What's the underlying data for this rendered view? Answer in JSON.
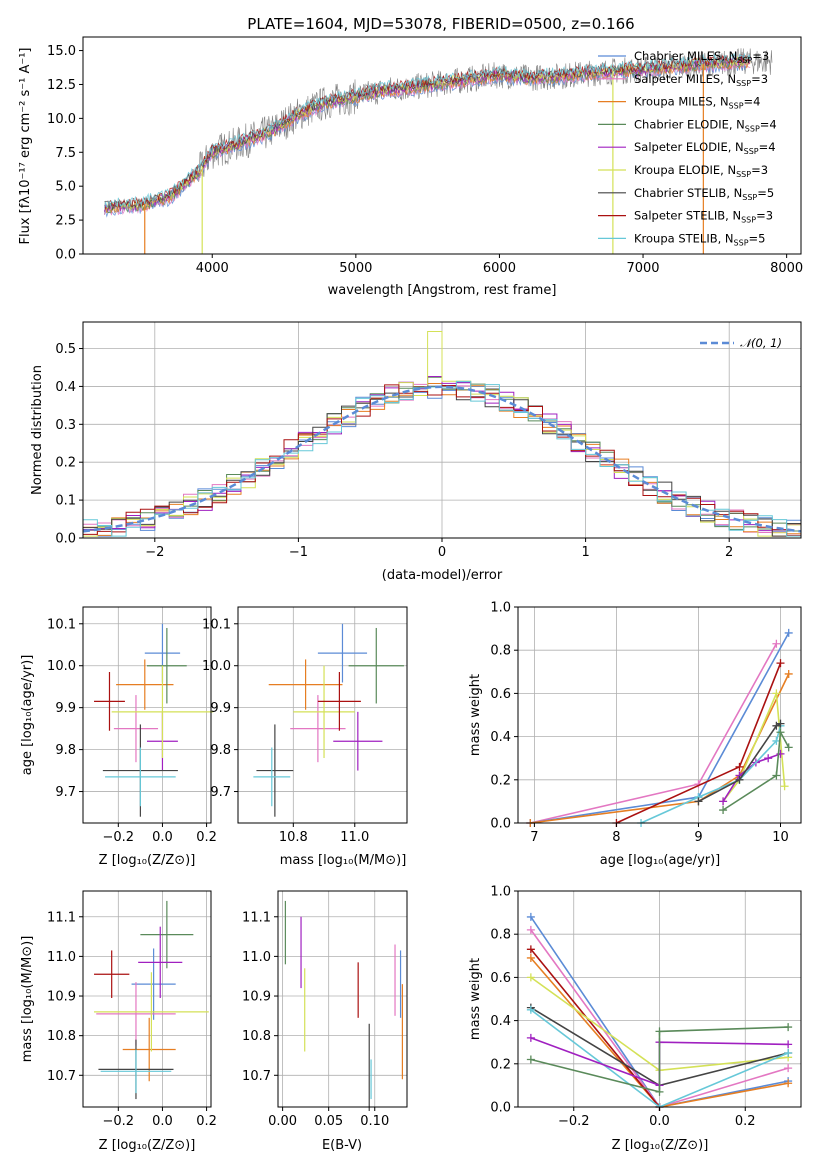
{
  "colors": {
    "chabrier_miles": "#5b8bd6",
    "salpeter_miles": "#e377c2",
    "kroupa_miles": "#e67e22",
    "chabrier_elodie": "#5a8a5a",
    "salpeter_elodie": "#a020c0",
    "kroupa_elodie": "#d4e157",
    "chabrier_stelib": "#444444",
    "salpeter_stelib": "#aa1111",
    "kroupa_stelib": "#66c8d8",
    "data": "#808080",
    "grid": "#b0b0b0"
  },
  "chart_data": [
    {
      "id": "spectrum",
      "type": "line",
      "title": "PLATE=1604, MJD=53078, FIBERID=0500, z=0.166",
      "xlabel": "wavelength [Angstrom, rest frame]",
      "ylabel": "Flux [fλ10⁻¹⁷ erg cm⁻² s⁻¹ A⁻¹]",
      "xlim": [
        3100,
        8100
      ],
      "ylim": [
        0,
        16
      ],
      "xticks": [
        "4000",
        "5000",
        "6000",
        "7000",
        "8000"
      ],
      "yticks": [
        "0.0",
        "2.5",
        "5.0",
        "7.5",
        "10.0",
        "12.5",
        "15.0"
      ],
      "legend_position": "right",
      "legend": [
        {
          "label": "Chabrier MILES, N",
          "sub": "SSP",
          "suffix": "=3",
          "color": "chabrier_miles"
        },
        {
          "label": "Salpeter MILES, N",
          "sub": "SSP",
          "suffix": "=3",
          "color": "salpeter_miles"
        },
        {
          "label": "Kroupa MILES, N",
          "sub": "SSP",
          "suffix": "=4",
          "color": "kroupa_miles"
        },
        {
          "label": "Chabrier ELODIE, N",
          "sub": "SSP",
          "suffix": "=4",
          "color": "chabrier_elodie"
        },
        {
          "label": "Salpeter ELODIE, N",
          "sub": "SSP",
          "suffix": "=4",
          "color": "salpeter_elodie"
        },
        {
          "label": "Kroupa ELODIE, N",
          "sub": "SSP",
          "suffix": "=3",
          "color": "kroupa_elodie"
        },
        {
          "label": "Chabrier STELIB, N",
          "sub": "SSP",
          "suffix": "=5",
          "color": "chabrier_stelib"
        },
        {
          "label": "Salpeter STELIB, N",
          "sub": "SSP",
          "suffix": "=3",
          "color": "salpeter_stelib"
        },
        {
          "label": "Kroupa STELIB, N",
          "sub": "SSP",
          "suffix": "=5",
          "color": "kroupa_stelib"
        }
      ],
      "trend": {
        "x": [
          3250,
          3500,
          3700,
          3900,
          4000,
          4200,
          4400,
          4600,
          4800,
          5000,
          5200,
          5400,
          5600,
          5800,
          6000,
          6200,
          6400,
          6600,
          6800,
          7000,
          7200,
          7400,
          7600,
          7700
        ],
        "y": [
          3.4,
          3.6,
          4.2,
          6.0,
          7.5,
          8.2,
          9.0,
          10.3,
          11.2,
          11.6,
          12.1,
          12.3,
          12.6,
          12.9,
          13.2,
          13.0,
          13.1,
          13.3,
          13.5,
          13.6,
          13.8,
          14.0,
          14.1,
          14.2
        ]
      },
      "dips": [
        {
          "x": 3530,
          "y": 0.0,
          "color": "kroupa_miles"
        },
        {
          "x": 3930,
          "y": 0.0,
          "color": "kroupa_elodie"
        },
        {
          "x": 6790,
          "y": 0.0,
          "color": "kroupa_elodie"
        },
        {
          "x": 7420,
          "y": 0.0,
          "color": "kroupa_miles"
        }
      ]
    },
    {
      "id": "residuals",
      "type": "histogram",
      "xlabel": "(data-model)/error",
      "ylabel": "Normed distribution",
      "xlim": [
        -2.5,
        2.5
      ],
      "ylim": [
        0,
        0.57
      ],
      "xticks": [
        "−2",
        "−1",
        "0",
        "1",
        "2"
      ],
      "yticks": [
        "0.0",
        "0.1",
        "0.2",
        "0.3",
        "0.4",
        "0.5"
      ],
      "legend": [
        {
          "label": "𝒩(0, 1)",
          "color": "chabrier_miles"
        }
      ],
      "legend_position": "top-right"
    },
    {
      "id": "age_vs_Z",
      "type": "errorbar",
      "xlabel": "Z [log₁₀(Z/Z⊙)]",
      "ylabel": "age  [log₁₀(age/yr)]",
      "xlim": [
        -0.36,
        0.22
      ],
      "ylim": [
        9.625,
        10.14
      ],
      "xticks": [
        "−0.2",
        "0.0",
        "0.2"
      ],
      "yticks": [
        "9.7",
        "9.8",
        "9.9",
        "10.0",
        "10.1"
      ],
      "points": [
        {
          "x": 0.0,
          "xerr": 0.08,
          "y": 10.03,
          "yerr": 0.07,
          "color": "chabrier_miles"
        },
        {
          "x": -0.12,
          "xerr": 0.1,
          "y": 9.85,
          "yerr": 0.08,
          "color": "salpeter_miles"
        },
        {
          "x": -0.08,
          "xerr": 0.13,
          "y": 9.955,
          "yerr": 0.06,
          "color": "kroupa_miles"
        },
        {
          "x": 0.02,
          "xerr": 0.09,
          "y": 10.0,
          "yerr": 0.09,
          "color": "chabrier_elodie"
        },
        {
          "x": 0.0,
          "xerr": 0.07,
          "y": 9.82,
          "yerr": 0.07,
          "color": "salpeter_elodie"
        },
        {
          "x": 0.0,
          "xerr": 0.23,
          "y": 9.89,
          "yerr": 0.11,
          "color": "kroupa_elodie"
        },
        {
          "x": -0.1,
          "xerr": 0.17,
          "y": 9.75,
          "yerr": 0.11,
          "color": "chabrier_stelib"
        },
        {
          "x": -0.24,
          "xerr": 0.07,
          "y": 9.915,
          "yerr": 0.07,
          "color": "salpeter_stelib"
        },
        {
          "x": -0.1,
          "xerr": 0.16,
          "y": 9.735,
          "yerr": 0.07,
          "color": "kroupa_stelib"
        }
      ]
    },
    {
      "id": "age_vs_mass",
      "type": "errorbar",
      "xlabel": "mass [log₁₀(M/M⊙)]",
      "ylabel": "",
      "xlim": [
        10.62,
        11.17
      ],
      "ylim": [
        9.625,
        10.14
      ],
      "xticks": [
        "10.8",
        "11.0"
      ],
      "yticks": [
        "9.7",
        "9.8",
        "9.9",
        "10.0",
        "10.1"
      ],
      "points": [
        {
          "x": 10.96,
          "xerr": 0.08,
          "y": 10.03,
          "yerr": 0.07,
          "color": "chabrier_miles"
        },
        {
          "x": 10.88,
          "xerr": 0.09,
          "y": 9.85,
          "yerr": 0.08,
          "color": "salpeter_miles"
        },
        {
          "x": 10.84,
          "xerr": 0.12,
          "y": 9.955,
          "yerr": 0.06,
          "color": "kroupa_miles"
        },
        {
          "x": 11.07,
          "xerr": 0.09,
          "y": 10.0,
          "yerr": 0.09,
          "color": "chabrier_elodie"
        },
        {
          "x": 11.01,
          "xerr": 0.08,
          "y": 9.82,
          "yerr": 0.07,
          "color": "salpeter_elodie"
        },
        {
          "x": 10.9,
          "xerr": 0.1,
          "y": 9.89,
          "yerr": 0.11,
          "color": "kroupa_elodie"
        },
        {
          "x": 10.74,
          "xerr": 0.06,
          "y": 9.75,
          "yerr": 0.11,
          "color": "chabrier_stelib"
        },
        {
          "x": 10.95,
          "xerr": 0.07,
          "y": 9.915,
          "yerr": 0.07,
          "color": "salpeter_stelib"
        },
        {
          "x": 10.73,
          "xerr": 0.06,
          "y": 9.735,
          "yerr": 0.07,
          "color": "kroupa_stelib"
        }
      ]
    },
    {
      "id": "weight_vs_age",
      "type": "line",
      "xlabel": "age  [log₁₀(age/yr)]",
      "ylabel": "mass weight",
      "xlim": [
        6.8,
        10.25
      ],
      "ylim": [
        0,
        1.0
      ],
      "xticks": [
        "7",
        "8",
        "9",
        "10"
      ],
      "yticks": [
        "0.0",
        "0.2",
        "0.4",
        "0.6",
        "0.8",
        "1.0"
      ],
      "series": [
        {
          "color": "salpeter_miles",
          "x": [
            6.95,
            9.0,
            9.95
          ],
          "y": [
            0.0,
            0.18,
            0.83
          ]
        },
        {
          "color": "chabrier_miles",
          "x": [
            6.95,
            9.0,
            10.1
          ],
          "y": [
            0.0,
            0.12,
            0.88
          ]
        },
        {
          "color": "kroupa_miles",
          "x": [
            6.95,
            9.0,
            9.5,
            10.1
          ],
          "y": [
            0.0,
            0.1,
            0.22,
            0.69
          ]
        },
        {
          "color": "salpeter_stelib",
          "x": [
            8.0,
            9.5,
            10.0
          ],
          "y": [
            0.0,
            0.26,
            0.74
          ]
        },
        {
          "color": "kroupa_elodie",
          "x": [
            9.3,
            9.5,
            9.95,
            10.05
          ],
          "y": [
            0.1,
            0.2,
            0.6,
            0.17
          ]
        },
        {
          "color": "salpeter_elodie",
          "x": [
            9.3,
            9.5,
            9.7,
            9.85,
            10.0
          ],
          "y": [
            0.1,
            0.22,
            0.28,
            0.3,
            0.32
          ]
        },
        {
          "color": "kroupa_stelib",
          "x": [
            8.3,
            9.0,
            9.5,
            9.95,
            10.0
          ],
          "y": [
            0.0,
            0.12,
            0.2,
            0.38,
            0.45
          ]
        },
        {
          "color": "chabrier_stelib",
          "x": [
            9.0,
            9.5,
            9.95,
            10.0
          ],
          "y": [
            0.1,
            0.2,
            0.45,
            0.46
          ]
        },
        {
          "color": "chabrier_elodie",
          "x": [
            9.3,
            9.95,
            10.0,
            10.1
          ],
          "y": [
            0.06,
            0.22,
            0.42,
            0.35
          ]
        }
      ]
    },
    {
      "id": "mass_vs_Z",
      "type": "errorbar",
      "xlabel": "Z [log₁₀(Z/Z⊙)]",
      "ylabel": "mass [log₁₀(M/M⊙)]",
      "xlim": [
        -0.36,
        0.22
      ],
      "ylim": [
        10.62,
        11.165
      ],
      "xticks": [
        "−0.2",
        "0.0",
        "0.2"
      ],
      "yticks": [
        "10.7",
        "10.8",
        "10.9",
        "11.0",
        "11.1"
      ],
      "points": [
        {
          "x": -0.04,
          "xerr": 0.1,
          "y": 10.93,
          "yerr": 0.09,
          "color": "chabrier_miles"
        },
        {
          "x": -0.12,
          "xerr": 0.18,
          "y": 10.855,
          "yerr": 0.08,
          "color": "salpeter_miles"
        },
        {
          "x": -0.06,
          "xerr": 0.12,
          "y": 10.765,
          "yerr": 0.08,
          "color": "kroupa_miles"
        },
        {
          "x": 0.02,
          "xerr": 0.12,
          "y": 11.055,
          "yerr": 0.085,
          "color": "chabrier_elodie"
        },
        {
          "x": -0.01,
          "xerr": 0.1,
          "y": 10.985,
          "yerr": 0.09,
          "color": "salpeter_elodie"
        },
        {
          "x": -0.05,
          "xerr": 0.26,
          "y": 10.86,
          "yerr": 0.1,
          "color": "kroupa_elodie"
        },
        {
          "x": -0.12,
          "xerr": 0.17,
          "y": 10.715,
          "yerr": 0.075,
          "color": "chabrier_stelib"
        },
        {
          "x": -0.23,
          "xerr": 0.08,
          "y": 10.955,
          "yerr": 0.06,
          "color": "salpeter_stelib"
        },
        {
          "x": -0.12,
          "xerr": 0.16,
          "y": 10.71,
          "yerr": 0.055,
          "color": "kroupa_stelib"
        }
      ]
    },
    {
      "id": "mass_vs_ebv",
      "type": "errorbar",
      "xlabel": "E(B-V)",
      "ylabel": "",
      "xlim": [
        -0.005,
        0.135
      ],
      "ylim": [
        10.62,
        11.165
      ],
      "xticks": [
        "0.00",
        "0.05",
        "0.10"
      ],
      "yticks": [
        "10.7",
        "10.8",
        "10.9",
        "11.0",
        "11.1"
      ],
      "points": [
        {
          "x": 0.128,
          "xerr": 0.0,
          "y": 10.93,
          "yerr": 0.085,
          "color": "chabrier_miles"
        },
        {
          "x": 0.122,
          "xerr": 0.0,
          "y": 10.94,
          "yerr": 0.09,
          "color": "salpeter_miles"
        },
        {
          "x": 0.13,
          "xerr": 0.0,
          "y": 10.81,
          "yerr": 0.12,
          "color": "kroupa_miles"
        },
        {
          "x": 0.003,
          "xerr": 0.0,
          "y": 11.06,
          "yerr": 0.08,
          "color": "chabrier_elodie"
        },
        {
          "x": 0.02,
          "xerr": 0.0,
          "y": 11.01,
          "yerr": 0.09,
          "color": "salpeter_elodie"
        },
        {
          "x": 0.024,
          "xerr": 0.0,
          "y": 10.865,
          "yerr": 0.105,
          "color": "kroupa_elodie"
        },
        {
          "x": 0.094,
          "xerr": 0.0,
          "y": 10.72,
          "yerr": 0.11,
          "color": "chabrier_stelib"
        },
        {
          "x": 0.082,
          "xerr": 0.0,
          "y": 10.915,
          "yerr": 0.07,
          "color": "salpeter_stelib"
        },
        {
          "x": 0.096,
          "xerr": 0.0,
          "y": 10.69,
          "yerr": 0.05,
          "color": "kroupa_stelib"
        }
      ]
    },
    {
      "id": "weight_vs_Z",
      "type": "line",
      "xlabel": "Z [log₁₀(Z/Z⊙)]",
      "ylabel": "mass weight",
      "xlim": [
        -0.33,
        0.33
      ],
      "ylim": [
        0,
        1.0
      ],
      "xticks": [
        "−0.2",
        "0.0",
        "0.2"
      ],
      "yticks": [
        "0.0",
        "0.2",
        "0.4",
        "0.6",
        "0.8",
        "1.0"
      ],
      "series": [
        {
          "color": "chabrier_miles",
          "x": [
            -0.3,
            0.0,
            0.3
          ],
          "y": [
            0.88,
            0.0,
            0.12
          ]
        },
        {
          "color": "salpeter_miles",
          "x": [
            -0.3,
            0.0,
            0.3
          ],
          "y": [
            0.82,
            0.0,
            0.18
          ]
        },
        {
          "color": "kroupa_miles",
          "x": [
            -0.3,
            0.0,
            0.3
          ],
          "y": [
            0.69,
            0.0,
            0.11
          ]
        },
        {
          "color": "salpeter_stelib",
          "x": [
            -0.3,
            0.0
          ],
          "y": [
            0.73,
            0.0
          ]
        },
        {
          "color": "kroupa_elodie",
          "x": [
            -0.3,
            0.0,
            0.3
          ],
          "y": [
            0.6,
            0.17,
            0.23
          ]
        },
        {
          "color": "chabrier_stelib",
          "x": [
            -0.3,
            0.0,
            0.3
          ],
          "y": [
            0.46,
            0.1,
            0.25
          ]
        },
        {
          "color": "kroupa_stelib",
          "x": [
            -0.3,
            0.0,
            0.3
          ],
          "y": [
            0.45,
            0.0,
            0.25
          ]
        },
        {
          "color": "salpeter_elodie",
          "x": [
            -0.3,
            0.0,
            0.0,
            0.3
          ],
          "y": [
            0.32,
            0.1,
            0.3,
            0.29
          ]
        },
        {
          "color": "chabrier_elodie",
          "x": [
            -0.3,
            0.0,
            0.0,
            0.3
          ],
          "y": [
            0.22,
            0.07,
            0.35,
            0.37
          ]
        }
      ]
    }
  ]
}
